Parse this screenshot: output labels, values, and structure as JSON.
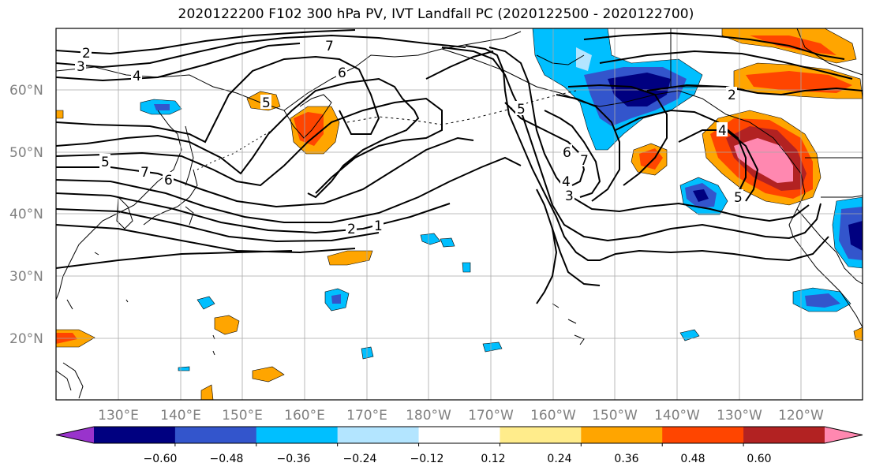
{
  "title": "2020122200 F102 300 hPa PV, IVT Landfall PC (2020122500 - 2020122700)",
  "lat_labels": [
    "60°N",
    "50°N",
    "40°N",
    "30°N",
    "20°N"
  ],
  "lon_labels": [
    "130°E",
    "140°E",
    "150°E",
    "160°E",
    "170°E",
    "180°W",
    "170°W",
    "160°W",
    "150°W",
    "140°W",
    "130°W",
    "120°W"
  ],
  "colorbar": {
    "ticks": [
      "−0.60",
      "−0.48",
      "−0.36",
      "−0.24",
      "−0.12",
      "0.12",
      "0.24",
      "0.36",
      "0.48",
      "0.60"
    ],
    "colors": [
      "#9933cc",
      "#000080",
      "#3355cc",
      "#00bfff",
      "#b3e5ff",
      "#ffffff",
      "#ffec8b",
      "#ffa500",
      "#ff4500",
      "#b22222",
      "#ff88b0"
    ]
  },
  "contour_labels": [
    "2",
    "3",
    "4",
    "7",
    "6",
    "5",
    "5",
    "6",
    "7",
    "5",
    "6",
    "7",
    "4",
    "3",
    "2",
    "1",
    "2",
    "4",
    "5"
  ]
}
